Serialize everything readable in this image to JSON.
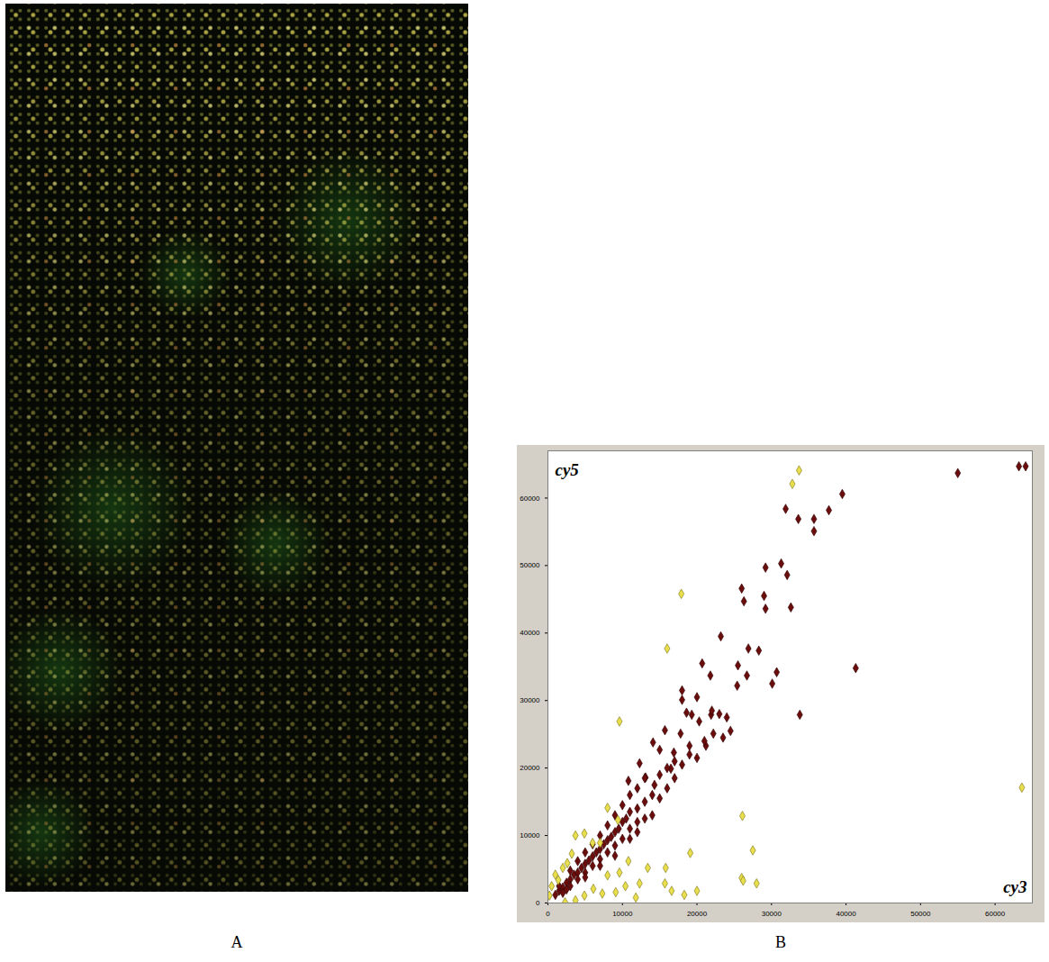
{
  "panel_labels": [
    "A",
    "B"
  ],
  "chart_data": {
    "type": "scatter",
    "x_label": "cy3",
    "y_label": "cy5",
    "xlim": [
      0,
      65000
    ],
    "ylim": [
      0,
      67000
    ],
    "xticks": [
      0,
      10000,
      20000,
      30000,
      40000,
      50000,
      60000
    ],
    "yticks": [
      0,
      10000,
      20000,
      30000,
      40000,
      50000,
      60000
    ],
    "grid": true,
    "series": [
      {
        "color": "#6b0d0d",
        "marker": "diamond",
        "x": [
          63200,
          64100,
          55000,
          39500,
          37700,
          35700,
          31900,
          33600,
          35700,
          31300,
          32100,
          29200,
          26000,
          26300,
          29000,
          29200,
          32600,
          41300,
          33800,
          26900,
          28300,
          23200,
          20700,
          21800,
          25500,
          26700,
          25400,
          30700,
          30100,
          18000,
          18600,
          19300,
          20300,
          21900,
          22200,
          21200,
          19000,
          17800,
          16900,
          15700,
          14100,
          15000,
          16500,
          13100,
          12300,
          10800,
          14300,
          18000,
          20000,
          1000,
          1500,
          2000,
          2500,
          3000,
          3500,
          4000,
          4500,
          5000,
          5500,
          6000,
          6500,
          7000,
          7500,
          8000,
          8500,
          9000,
          9500,
          10000,
          10500,
          11000,
          12000,
          2000,
          3000,
          4000,
          5000,
          6000,
          7000,
          8000,
          9000,
          10000,
          11000,
          12000,
          13000,
          14000,
          3000,
          4000,
          5000,
          6000,
          7000,
          8000,
          9000,
          10000,
          11000,
          12000,
          13000,
          1500,
          2500,
          5000,
          7000,
          9000,
          11000,
          12000,
          13000,
          14000,
          15000,
          16000,
          17000,
          15000,
          16000,
          17000,
          18000,
          19000,
          20000,
          21000,
          22000,
          23000,
          24000,
          24500,
          23500
        ],
        "y": [
          64700,
          64700,
          63700,
          60600,
          58200,
          56900,
          58400,
          56900,
          55100,
          50300,
          48600,
          49700,
          46600,
          44700,
          45500,
          43600,
          43800,
          34800,
          27900,
          37700,
          37400,
          39500,
          35500,
          33700,
          35200,
          33700,
          32200,
          34200,
          32500,
          30100,
          28200,
          27900,
          26900,
          27900,
          25100,
          23300,
          23300,
          25100,
          22300,
          25600,
          23800,
          22700,
          19900,
          18600,
          20700,
          18100,
          17500,
          31500,
          30500,
          1200,
          1800,
          2300,
          3000,
          3500,
          4200,
          4500,
          5200,
          5800,
          6300,
          6900,
          7500,
          8000,
          8700,
          9300,
          9800,
          10500,
          11000,
          12000,
          12500,
          13500,
          14000,
          1500,
          2500,
          3500,
          4500,
          5500,
          6500,
          7500,
          8500,
          9500,
          11000,
          12000,
          15000,
          16000,
          4800,
          6200,
          7500,
          8700,
          10000,
          11500,
          13000,
          14500,
          16000,
          17000,
          18500,
          2500,
          2000,
          3800,
          5500,
          7000,
          9500,
          10500,
          12500,
          13000,
          15500,
          17000,
          18500,
          19000,
          20000,
          21000,
          20500,
          22000,
          21500,
          24000,
          28500,
          28000,
          27500,
          25500,
          24500
        ]
      },
      {
        "color": "#e8df4c",
        "marker": "diamond",
        "x": [
          33700,
          32800,
          17900,
          16000,
          9600,
          63600,
          27500,
          26100,
          26000,
          26200,
          28000,
          19100,
          20000,
          18300,
          16600,
          15800,
          15700,
          13400,
          12300,
          11800,
          10400,
          9100,
          8000,
          7300,
          8000,
          9400,
          6000,
          3700,
          2600,
          1400,
          2000,
          4900,
          7000,
          500,
          200,
          1000,
          3200,
          4900,
          6100,
          3700,
          2300,
          9600,
          10800
        ],
        "y": [
          64100,
          62100,
          45800,
          37700,
          26900,
          17100,
          7800,
          12900,
          3700,
          3300,
          2900,
          7400,
          1800,
          1200,
          1800,
          5200,
          2900,
          5200,
          2900,
          800,
          2500,
          1600,
          4100,
          1400,
          14100,
          12300,
          8900,
          10000,
          5900,
          3400,
          5200,
          10300,
          8900,
          2500,
          1100,
          4200,
          7300,
          1100,
          2100,
          400,
          100,
          4500,
          6200
        ]
      }
    ]
  }
}
